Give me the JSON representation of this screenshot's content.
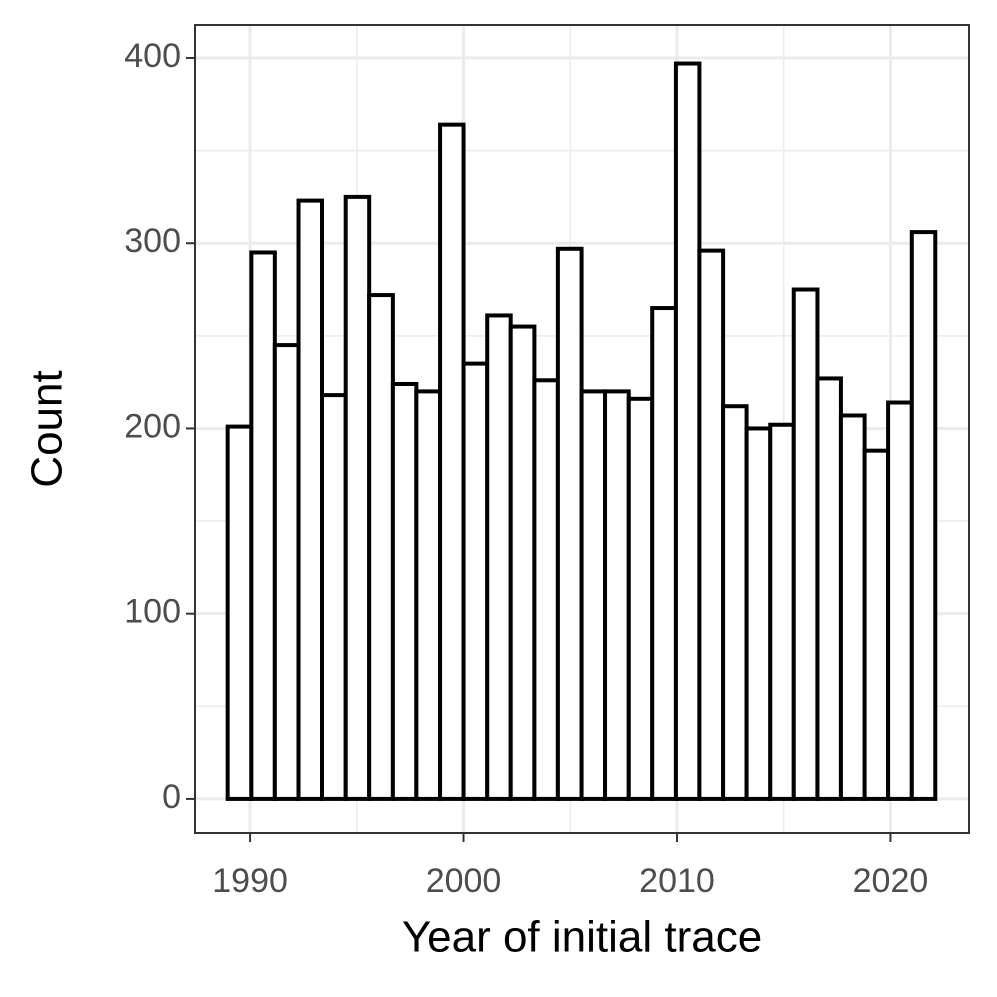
{
  "chart_data": {
    "type": "histogram",
    "x_label": "Year of initial trace",
    "y_label": "Count",
    "bins": [
      1988.95,
      1990.06,
      1991.16,
      1992.27,
      1993.37,
      1994.48,
      1995.58,
      1996.69,
      1997.79,
      1998.9,
      2000.0,
      2001.11,
      2002.21,
      2003.32,
      2004.42,
      2005.53,
      2006.63,
      2007.74,
      2008.84,
      2009.95,
      2011.05,
      2012.16,
      2013.26,
      2014.37,
      2015.47,
      2016.58,
      2017.68,
      2018.79,
      2019.89,
      2021.0,
      2022.1
    ],
    "values": [
      201,
      295,
      245,
      323,
      218,
      325,
      272,
      224,
      220,
      364,
      235,
      261,
      255,
      226,
      297,
      220,
      220,
      216,
      265,
      397,
      296,
      212,
      200,
      202,
      275,
      227,
      207,
      188,
      214,
      306
    ],
    "color": "#ffffff",
    "edge_color": "#000000",
    "xlim": [
      1987.42,
      2023.68
    ],
    "xticks": [
      1990,
      2000,
      2010,
      2020
    ],
    "ylim": [
      -18.4,
      417.8
    ],
    "yticks": [
      0,
      100,
      200,
      300,
      400
    ],
    "grid": true
  }
}
